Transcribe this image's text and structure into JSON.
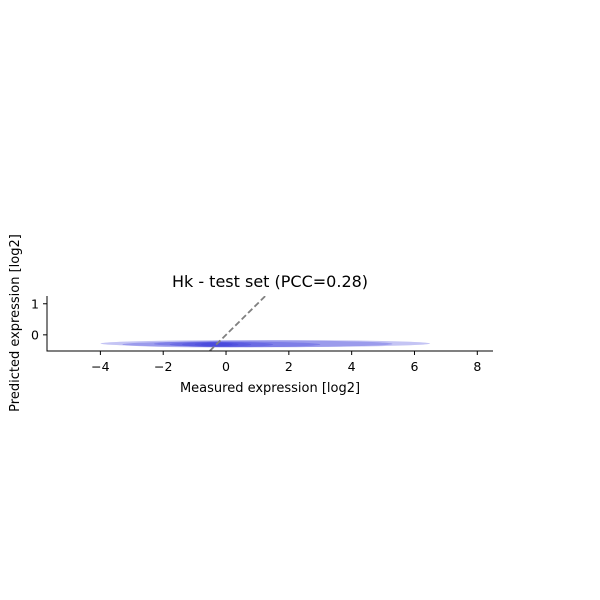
{
  "chart_data": {
    "type": "density",
    "title": "Hk - test set (PCC=0.28)",
    "xlabel": "Measured expression [log2]",
    "ylabel": "Predicted expression [log2]",
    "xlim": [
      -5.7,
      8.5
    ],
    "ylim": [
      -0.52,
      1.25
    ],
    "xticks": [
      -4,
      -2,
      0,
      2,
      4,
      6,
      8
    ],
    "yticks": [
      0,
      1
    ],
    "pcc": 0.28,
    "reference_line": {
      "slope": 1,
      "intercept": 0,
      "style": "dashed",
      "color": "#808080"
    },
    "density_color": "#3c3cdc",
    "density_levels": [
      {
        "level": 1,
        "y_center": -0.28,
        "x_range": [
          -4.0,
          6.5
        ]
      },
      {
        "level": 2,
        "y_center": -0.29,
        "x_range": [
          -2.3,
          5.3
        ]
      },
      {
        "level": 3,
        "y_center": -0.31,
        "x_range": [
          -3.3,
          3.0
        ]
      },
      {
        "level": 4,
        "y_center": -0.31,
        "x_range": [
          -1.8,
          1.5
        ]
      },
      {
        "level": 5,
        "y_center": -0.31,
        "x_range": [
          -1.4,
          0.8
        ]
      },
      {
        "level": 6,
        "y_center": -0.31,
        "x_range": [
          -1.0,
          0.4
        ]
      },
      {
        "level": 7,
        "y_center": -0.31,
        "x_range": [
          -0.8,
          0.2
        ]
      }
    ],
    "spines": [
      "left",
      "bottom"
    ],
    "grid": false
  }
}
